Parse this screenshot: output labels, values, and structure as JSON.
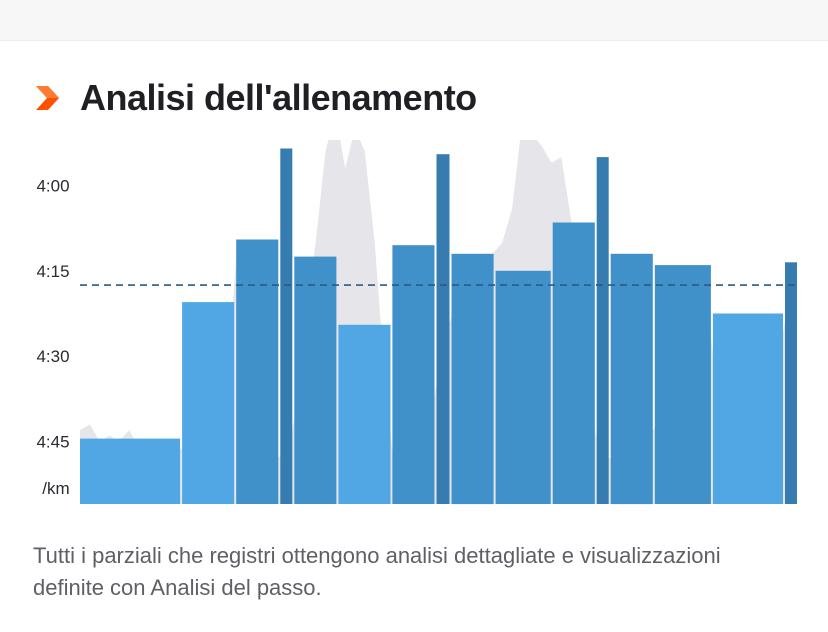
{
  "header": {
    "title": "Analisi dell'allenamento",
    "icon": "chevron-right-icon",
    "accent_color": "#fc5200"
  },
  "caption": "Tutti i parziali che registri ottengono analisi dettagliate e visualizzazioni definite con Analisi del passo.",
  "chart_data": {
    "type": "bar",
    "ylabel": "/km",
    "y_unit": "min/km",
    "y_ticks": [
      "4:00",
      "4:15",
      "4:30",
      "4:45"
    ],
    "y_tick_seconds": [
      240,
      255,
      270,
      285
    ],
    "ylim_seconds": [
      232,
      296
    ],
    "inverted": true,
    "average_pace_seconds": 257.5,
    "average_line": "dashed",
    "bar_colors": {
      "slow": "#4aa4e2",
      "fast": "#3a8dc8",
      "fastest": "#357fb6",
      "dark": "#2f78ad"
    },
    "splits": [
      {
        "pace_seconds": 284.5,
        "weight": 1.0,
        "tone": "slow"
      },
      {
        "pace_seconds": 260.5,
        "weight": 0.52,
        "tone": "slow"
      },
      {
        "pace_seconds": 249.5,
        "weight": 0.42,
        "tone": "fast"
      },
      {
        "pace_seconds": 233.5,
        "weight": 0.12,
        "tone": "dark"
      },
      {
        "pace_seconds": 252.5,
        "weight": 0.42,
        "tone": "fast"
      },
      {
        "pace_seconds": 264.5,
        "weight": 0.52,
        "tone": "slow"
      },
      {
        "pace_seconds": 250.5,
        "weight": 0.42,
        "tone": "fast"
      },
      {
        "pace_seconds": 234.5,
        "weight": 0.13,
        "tone": "dark"
      },
      {
        "pace_seconds": 252.0,
        "weight": 0.42,
        "tone": "fast"
      },
      {
        "pace_seconds": 255.0,
        "weight": 0.55,
        "tone": "fast"
      },
      {
        "pace_seconds": 246.5,
        "weight": 0.42,
        "tone": "fast"
      },
      {
        "pace_seconds": 235.0,
        "weight": 0.12,
        "tone": "dark"
      },
      {
        "pace_seconds": 252.0,
        "weight": 0.42,
        "tone": "fast"
      },
      {
        "pace_seconds": 254.0,
        "weight": 0.56,
        "tone": "fast"
      },
      {
        "pace_seconds": 262.5,
        "weight": 0.7,
        "tone": "slow"
      },
      {
        "pace_seconds": 253.5,
        "weight": 0.12,
        "tone": "dark"
      }
    ],
    "pace_trace_color": "#e6e6ea",
    "pace_trace_seconds": [
      283,
      282,
      285,
      284,
      285,
      283,
      286,
      285,
      286,
      287,
      286,
      287,
      286,
      288,
      289,
      275,
      250,
      256,
      269,
      280,
      288,
      287,
      280,
      262,
      250,
      234,
      227,
      237,
      230,
      234,
      250,
      273,
      290,
      293,
      292,
      289,
      278,
      268,
      262,
      258,
      259,
      255,
      252,
      250,
      244,
      229,
      231,
      233,
      236,
      235,
      246,
      265,
      280,
      287,
      288,
      289,
      290,
      288,
      284,
      281,
      275,
      272,
      274,
      264,
      262,
      280,
      292,
      293,
      291,
      286,
      280,
      271,
      262,
      258
    ]
  }
}
